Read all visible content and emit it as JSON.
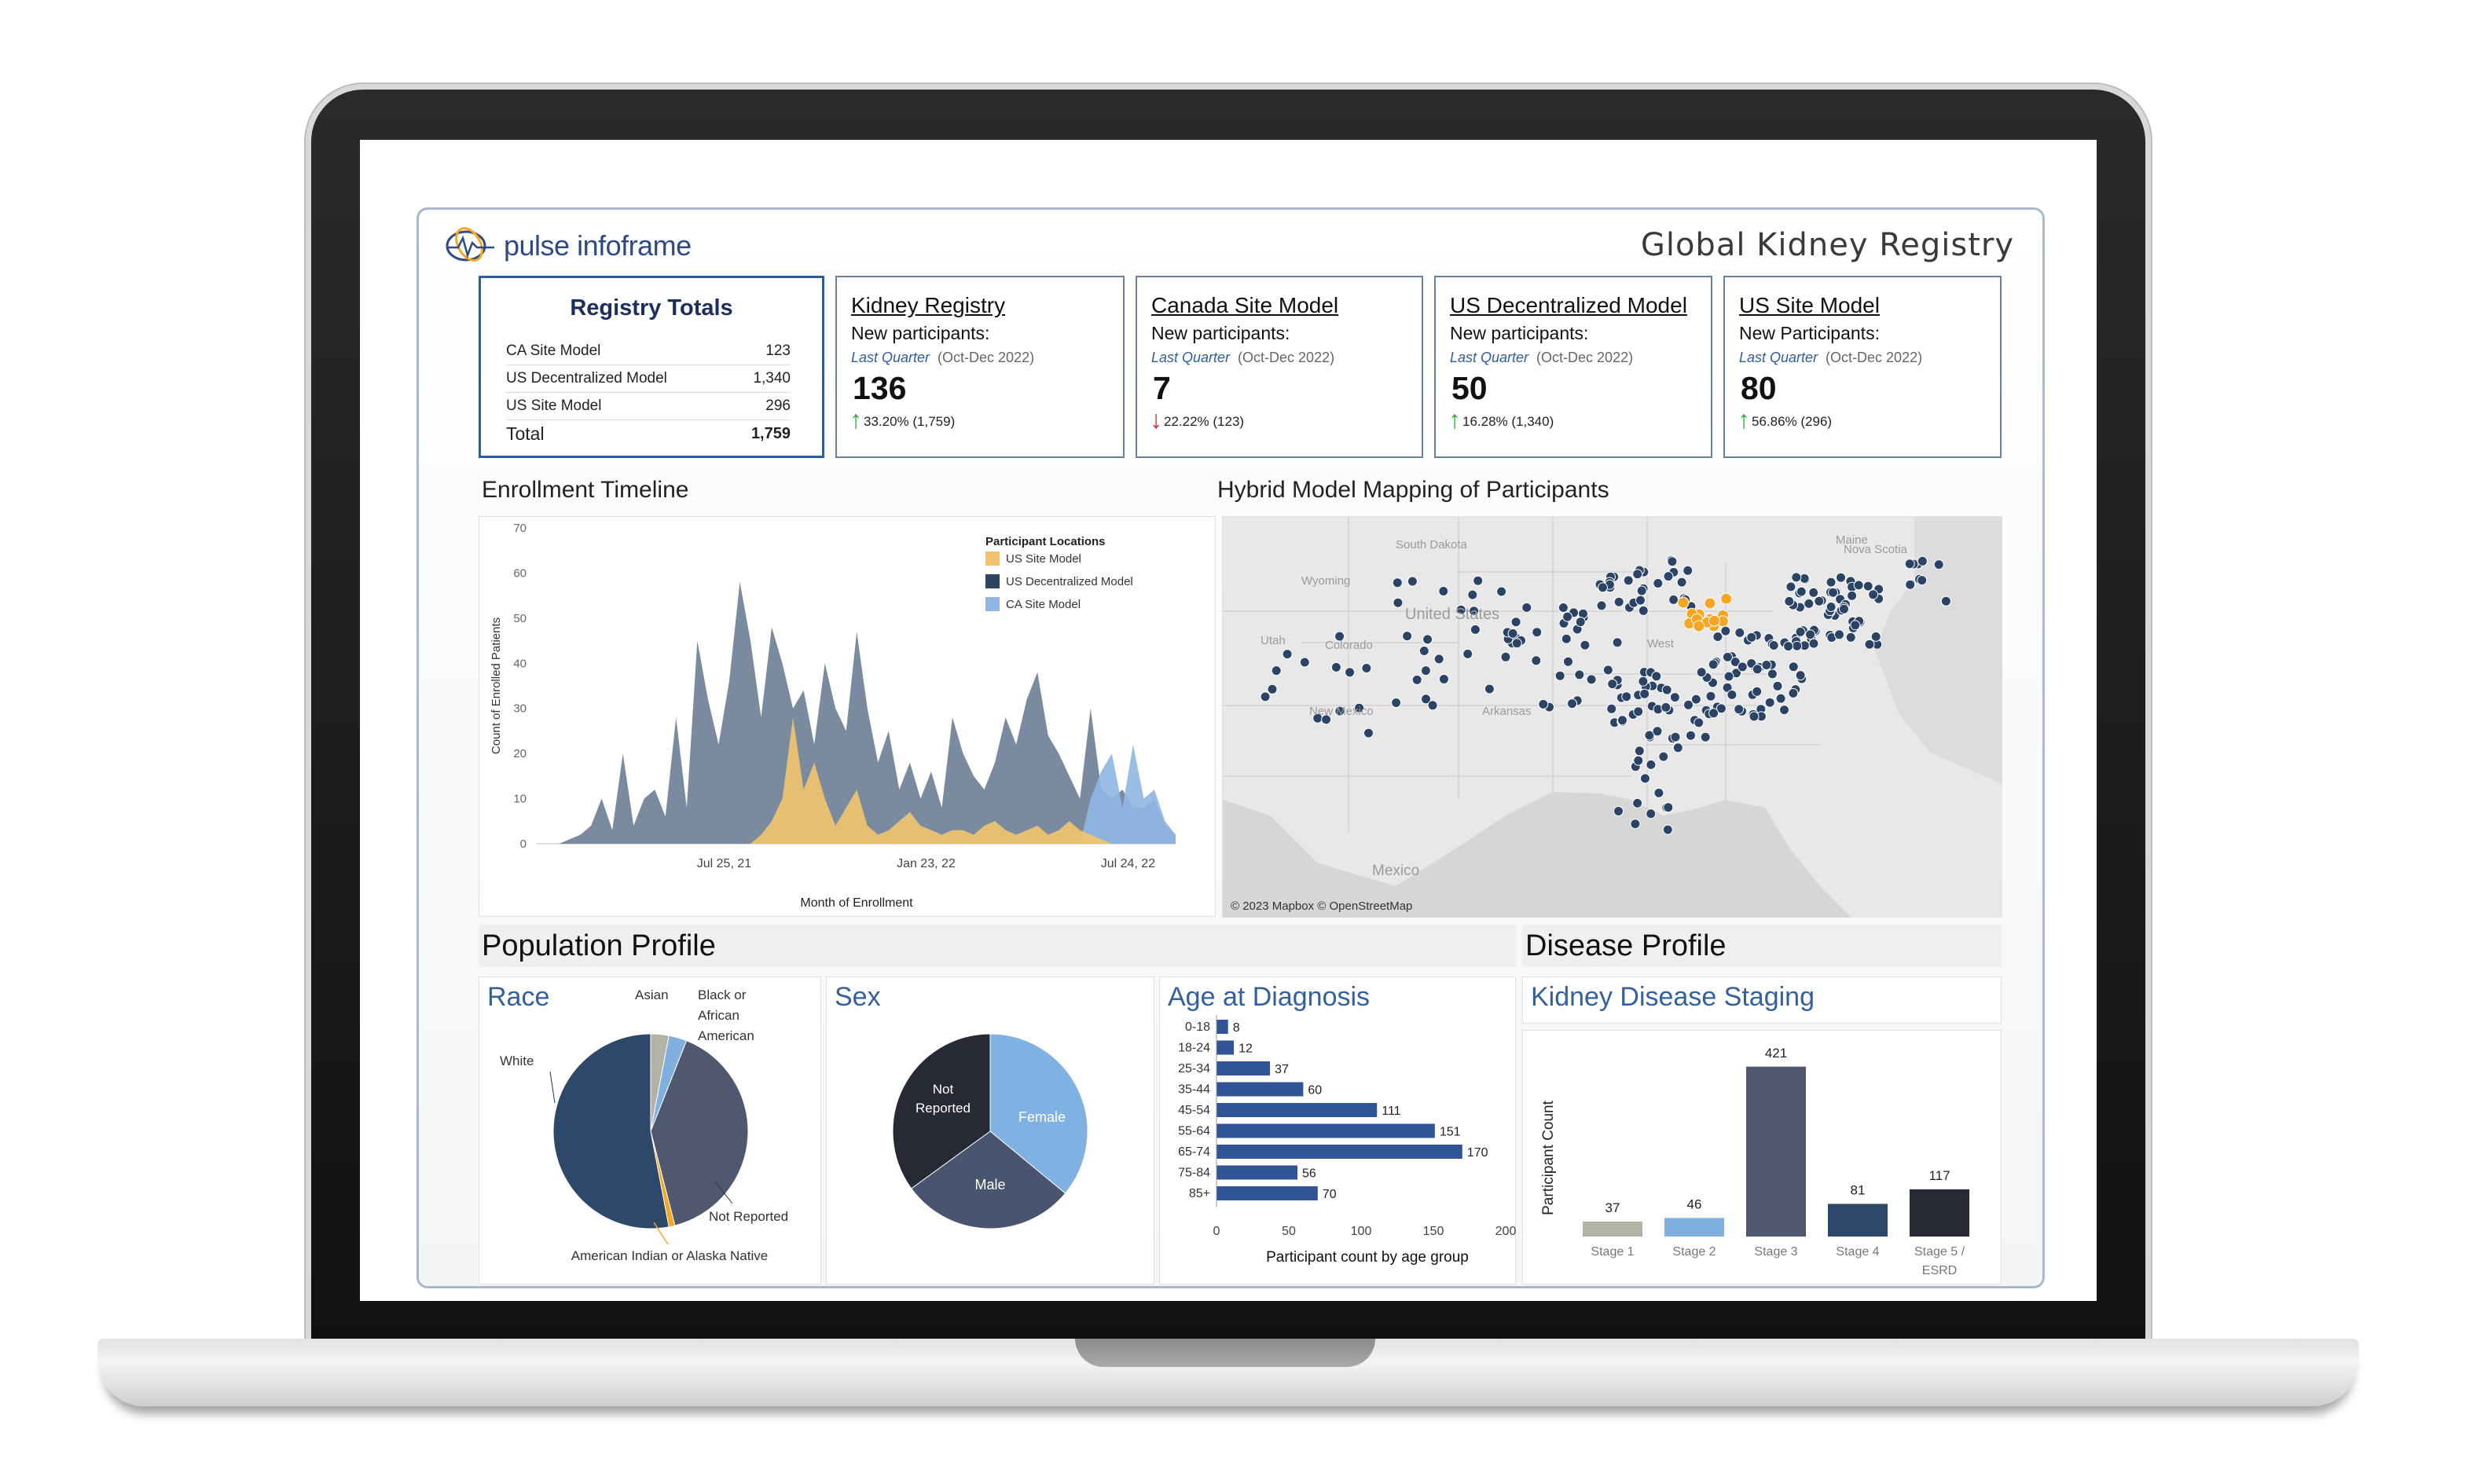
{
  "header": {
    "logo_text": "pulse infoframe",
    "title": "Global Kidney Registry"
  },
  "registry_totals": {
    "title": "Registry Totals",
    "rows": [
      {
        "label": "CA Site Model",
        "value": "123"
      },
      {
        "label": "US Decentralized Model",
        "value": "1,340"
      },
      {
        "label": "US Site Model",
        "value": "296"
      }
    ],
    "total": {
      "label": "Total",
      "value": "1,759"
    }
  },
  "kpis": [
    {
      "title": "Kidney Registry",
      "subtitle": "New participants:",
      "period_label": "Last Quarter",
      "period": "(Oct-Dec 2022)",
      "value": "136",
      "change": "33.20% (1,759)",
      "direction": "up"
    },
    {
      "title": "Canada Site Model",
      "subtitle": "New participants:",
      "period_label": "Last Quarter",
      "period": "(Oct-Dec 2022)",
      "value": "7",
      "change": "22.22% (123)",
      "direction": "down"
    },
    {
      "title": "US Decentralized Model",
      "subtitle": "New participants:",
      "period_label": "Last Quarter",
      "period": "(Oct-Dec 2022)",
      "value": "50",
      "change": "16.28% (1,340)",
      "direction": "up"
    },
    {
      "title": "US Site Model",
      "subtitle": "New Participants:",
      "period_label": "Last Quarter",
      "period": "(Oct-Dec 2022)",
      "value": "80",
      "change": "56.86% (296)",
      "direction": "up"
    }
  ],
  "sections": {
    "enrollment": "Enrollment Timeline",
    "map": "Hybrid Model Mapping of Participants",
    "population": "Population Profile",
    "disease": "Disease Profile"
  },
  "map": {
    "attribution": "© 2023 Mapbox © OpenStreetMap",
    "labels": [
      "South Dakota",
      "Wyoming",
      "United States",
      "Utah",
      "Colorado",
      "New Mexico",
      "Arkansas",
      "Mexico",
      "Maine",
      "Nova Scotia",
      "West"
    ],
    "dot_color": "#2b4466",
    "highlight_color": "#f5a623"
  },
  "colors": {
    "us_site": "#f2c46d",
    "us_decentralized": "#2e4560",
    "ca_site": "#8fb6e3",
    "race_black": "#7fb0e0",
    "race_not_reported": "#50586f",
    "race_white": "#2d4869",
    "race_asian": "#b3b3a5",
    "race_aian": "#f5a623",
    "sex_female": "#7fb2e2",
    "sex_male": "#4a546e",
    "sex_not_reported": "#272a35",
    "bar_blue": "#2f5597"
  },
  "chart_data": [
    {
      "id": "enrollment",
      "type": "area",
      "title": "Enrollment Timeline",
      "xlabel": "Month of Enrollment",
      "ylabel": "Count of Enrolled Patients",
      "ylim": [
        0,
        70
      ],
      "yticks": [
        0,
        10,
        20,
        30,
        40,
        50,
        60,
        70
      ],
      "xticks": [
        "Jul 25, 21",
        "Jan 23, 22",
        "Jul 24, 22"
      ],
      "legend_title": "Participant Locations",
      "legend_position": "top-right",
      "series": [
        {
          "name": "US Site Model",
          "color": "#f2c46d",
          "values": [
            0,
            0,
            0,
            0,
            0,
            0,
            0,
            0,
            0,
            0,
            0,
            0,
            0,
            0,
            0,
            0,
            0,
            0,
            0,
            0,
            2,
            5,
            10,
            28,
            12,
            18,
            10,
            4,
            8,
            12,
            4,
            2,
            3,
            5,
            7,
            4,
            3,
            2,
            3,
            3,
            2,
            4,
            5,
            3,
            2,
            3,
            4,
            2,
            3,
            5,
            3,
            2,
            1,
            0,
            0,
            0,
            0,
            0,
            0,
            0
          ]
        },
        {
          "name": "US Decentralized Model",
          "color": "#2e4560",
          "values": [
            0,
            0,
            1,
            2,
            4,
            10,
            3,
            20,
            4,
            10,
            12,
            6,
            28,
            8,
            45,
            32,
            22,
            36,
            58,
            45,
            28,
            48,
            40,
            30,
            34,
            22,
            40,
            30,
            25,
            47,
            30,
            18,
            25,
            12,
            18,
            10,
            16,
            8,
            28,
            20,
            15,
            12,
            18,
            28,
            22,
            32,
            38,
            24,
            20,
            15,
            10,
            30,
            12,
            10,
            12,
            8,
            8,
            10,
            4,
            2
          ]
        },
        {
          "name": "CA Site Model",
          "color": "#8fb6e3",
          "values": [
            0,
            0,
            0,
            0,
            0,
            0,
            0,
            0,
            0,
            0,
            0,
            0,
            0,
            0,
            0,
            0,
            0,
            0,
            0,
            0,
            0,
            0,
            0,
            0,
            0,
            0,
            0,
            0,
            0,
            0,
            0,
            0,
            0,
            0,
            0,
            0,
            0,
            0,
            0,
            0,
            0,
            0,
            0,
            0,
            0,
            0,
            0,
            0,
            0,
            0,
            0,
            10,
            16,
            20,
            8,
            22,
            10,
            12,
            5,
            2
          ]
        }
      ]
    },
    {
      "id": "race",
      "type": "pie",
      "title": "Race",
      "slices": [
        {
          "name": "Asian",
          "value": 3,
          "color": "#b3b3a5"
        },
        {
          "name": "Black or African American",
          "value": 3,
          "color": "#7fb0e0"
        },
        {
          "name": "Not Reported",
          "value": 40,
          "color": "#50586f"
        },
        {
          "name": "American Indian or Alaska Native",
          "value": 1,
          "color": "#f5a623"
        },
        {
          "name": "White",
          "value": 53,
          "color": "#2d4869"
        }
      ]
    },
    {
      "id": "sex",
      "type": "pie",
      "title": "Sex",
      "slices": [
        {
          "name": "Female",
          "value": 36,
          "color": "#7fb2e2"
        },
        {
          "name": "Male",
          "value": 29,
          "color": "#4a546e"
        },
        {
          "name": "Not Reported",
          "value": 35,
          "color": "#272a35"
        }
      ]
    },
    {
      "id": "age",
      "type": "bar",
      "orientation": "horizontal",
      "title": "Age at Diagnosis",
      "xlabel": "Participant count by age group",
      "xlim": [
        0,
        200
      ],
      "xticks": [
        0,
        50,
        100,
        150,
        200
      ],
      "categories": [
        "0-18",
        "18-24",
        "25-34",
        "35-44",
        "45-54",
        "55-64",
        "65-74",
        "75-84",
        "85+"
      ],
      "values": [
        8,
        12,
        37,
        60,
        111,
        151,
        170,
        56,
        70
      ],
      "color": "#2f5597"
    },
    {
      "id": "staging",
      "type": "bar",
      "title": "Kidney Disease Staging",
      "ylabel": "Participant Count",
      "ylim": [
        0,
        440
      ],
      "categories": [
        "Stage 1",
        "Stage 2",
        "Stage 3",
        "Stage 4",
        "Stage 5 / ESRD"
      ],
      "values": [
        37,
        46,
        421,
        81,
        117
      ],
      "colors": [
        "#b3b3a5",
        "#7fb0e0",
        "#50586f",
        "#2d4869",
        "#272a35"
      ]
    }
  ]
}
